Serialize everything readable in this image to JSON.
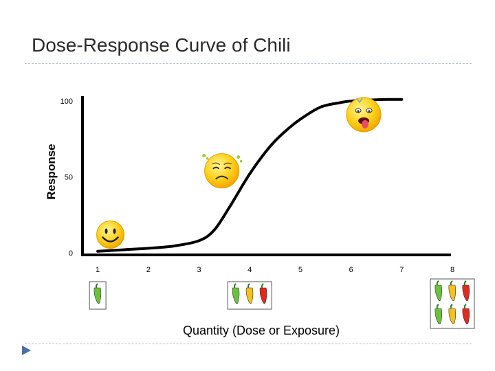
{
  "slide": {
    "title": "Dose-Response Curve of Chili",
    "nav_icon": "triangle-right-icon",
    "accent_color": "#4a6fa5"
  },
  "chart_data": {
    "type": "line",
    "title": "",
    "xlabel": "Quantity (Dose or Exposure)",
    "ylabel": "Response",
    "x_ticks": [
      "1",
      "2",
      "3",
      "4",
      "5",
      "6",
      "7",
      "8"
    ],
    "y_ticks": [
      "0",
      "50",
      "100"
    ],
    "xlim": [
      0.7,
      8
    ],
    "ylim": [
      0,
      100
    ],
    "grid": false,
    "series": [
      {
        "color": "#000000",
        "x": [
          1,
          1.5,
          2,
          2.5,
          3,
          3.3,
          3.6,
          4,
          4.4,
          4.7,
          5,
          5.4,
          5.8,
          6,
          6.3,
          6.7,
          7
        ],
        "y": [
          1,
          2,
          3,
          4.5,
          8,
          15,
          30,
          52,
          70,
          80,
          88,
          96,
          99,
          100,
          100.5,
          101,
          101
        ]
      }
    ],
    "annotations": [
      {
        "icon": "smiley-happy-icon",
        "x": 1.25,
        "y": 12
      },
      {
        "icon": "smiley-sick-icon",
        "x": 3.45,
        "y": 54
      },
      {
        "icon": "smiley-burning-icon",
        "x": 6.25,
        "y": 91
      }
    ],
    "pepper_groups": [
      {
        "x": 1,
        "count": 1,
        "colors": [
          "#6cc23c"
        ]
      },
      {
        "x": 4,
        "count": 3,
        "colors": [
          "#6cc23c",
          "#f5c21b",
          "#e02a1f"
        ]
      },
      {
        "x": 8,
        "count": 6,
        "colors": [
          "#6cc23c",
          "#f5c21b",
          "#e02a1f",
          "#6cc23c",
          "#f5c21b",
          "#e02a1f"
        ]
      }
    ]
  }
}
